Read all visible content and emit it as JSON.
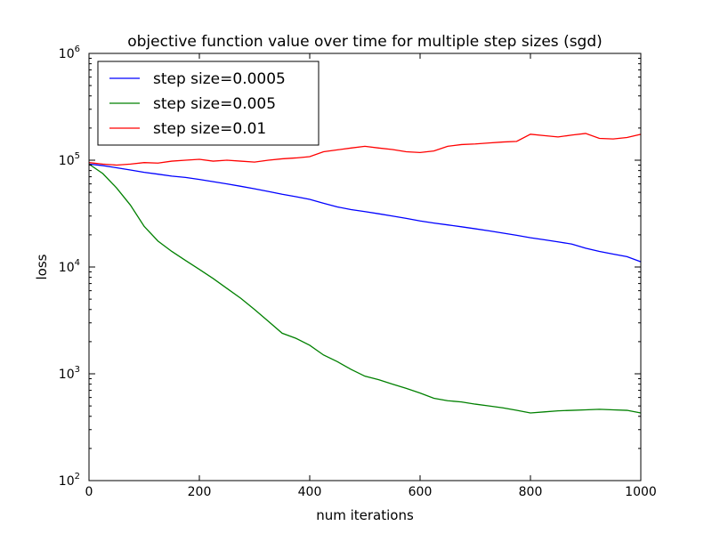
{
  "chart_data": {
    "type": "line",
    "title": "objective function value over time for multiple step sizes (sgd)",
    "xlabel": "num iterations",
    "ylabel": "loss",
    "xlim": [
      0,
      1000
    ],
    "ylim": [
      100,
      1000000
    ],
    "yscale": "log",
    "grid": false,
    "legend_position": "top-left",
    "x_ticks": [
      "0",
      "200",
      "400",
      "600",
      "800",
      "1000"
    ],
    "y_ticks": [
      {
        "base": "10",
        "exp": "2"
      },
      {
        "base": "10",
        "exp": "3"
      },
      {
        "base": "10",
        "exp": "4"
      },
      {
        "base": "10",
        "exp": "5"
      },
      {
        "base": "10",
        "exp": "6"
      }
    ],
    "x": [
      0,
      25,
      50,
      75,
      100,
      125,
      150,
      175,
      200,
      225,
      250,
      275,
      300,
      325,
      350,
      375,
      400,
      425,
      450,
      475,
      500,
      525,
      550,
      575,
      600,
      625,
      650,
      675,
      700,
      725,
      750,
      775,
      800,
      825,
      850,
      875,
      900,
      925,
      950,
      975,
      1000
    ],
    "series": [
      {
        "name": "step size=0.0005",
        "color": "#0000ff",
        "values": [
          92000,
          89000,
          85000,
          81000,
          77000,
          74000,
          71000,
          69000,
          66000,
          63000,
          60000,
          57000,
          54000,
          51000,
          48000,
          45500,
          43000,
          39500,
          36500,
          34500,
          33000,
          31500,
          30000,
          28500,
          27000,
          25800,
          24800,
          23800,
          22800,
          21800,
          20800,
          19800,
          18800,
          18000,
          17200,
          16400,
          15000,
          14000,
          13200,
          12500,
          11200
        ]
      },
      {
        "name": "step size=0.005",
        "color": "#008000",
        "values": [
          92000,
          75000,
          55000,
          38000,
          24000,
          17500,
          14000,
          11500,
          9500,
          7800,
          6300,
          5100,
          4000,
          3100,
          2400,
          2150,
          1850,
          1500,
          1300,
          1100,
          950,
          880,
          800,
          730,
          660,
          590,
          560,
          545,
          520,
          500,
          480,
          455,
          430,
          440,
          450,
          455,
          460,
          465,
          460,
          455,
          430
        ]
      },
      {
        "name": "step size=0.01",
        "color": "#ff0000",
        "values": [
          95000,
          92000,
          90000,
          92000,
          95000,
          94000,
          98000,
          100000,
          102000,
          98000,
          100000,
          98000,
          96000,
          100000,
          103000,
          105000,
          108000,
          120000,
          125000,
          130000,
          135000,
          130000,
          126000,
          120000,
          118000,
          122000,
          135000,
          140000,
          142000,
          145000,
          148000,
          150000,
          175000,
          170000,
          165000,
          172000,
          178000,
          160000,
          158000,
          163000,
          175000
        ]
      }
    ]
  }
}
